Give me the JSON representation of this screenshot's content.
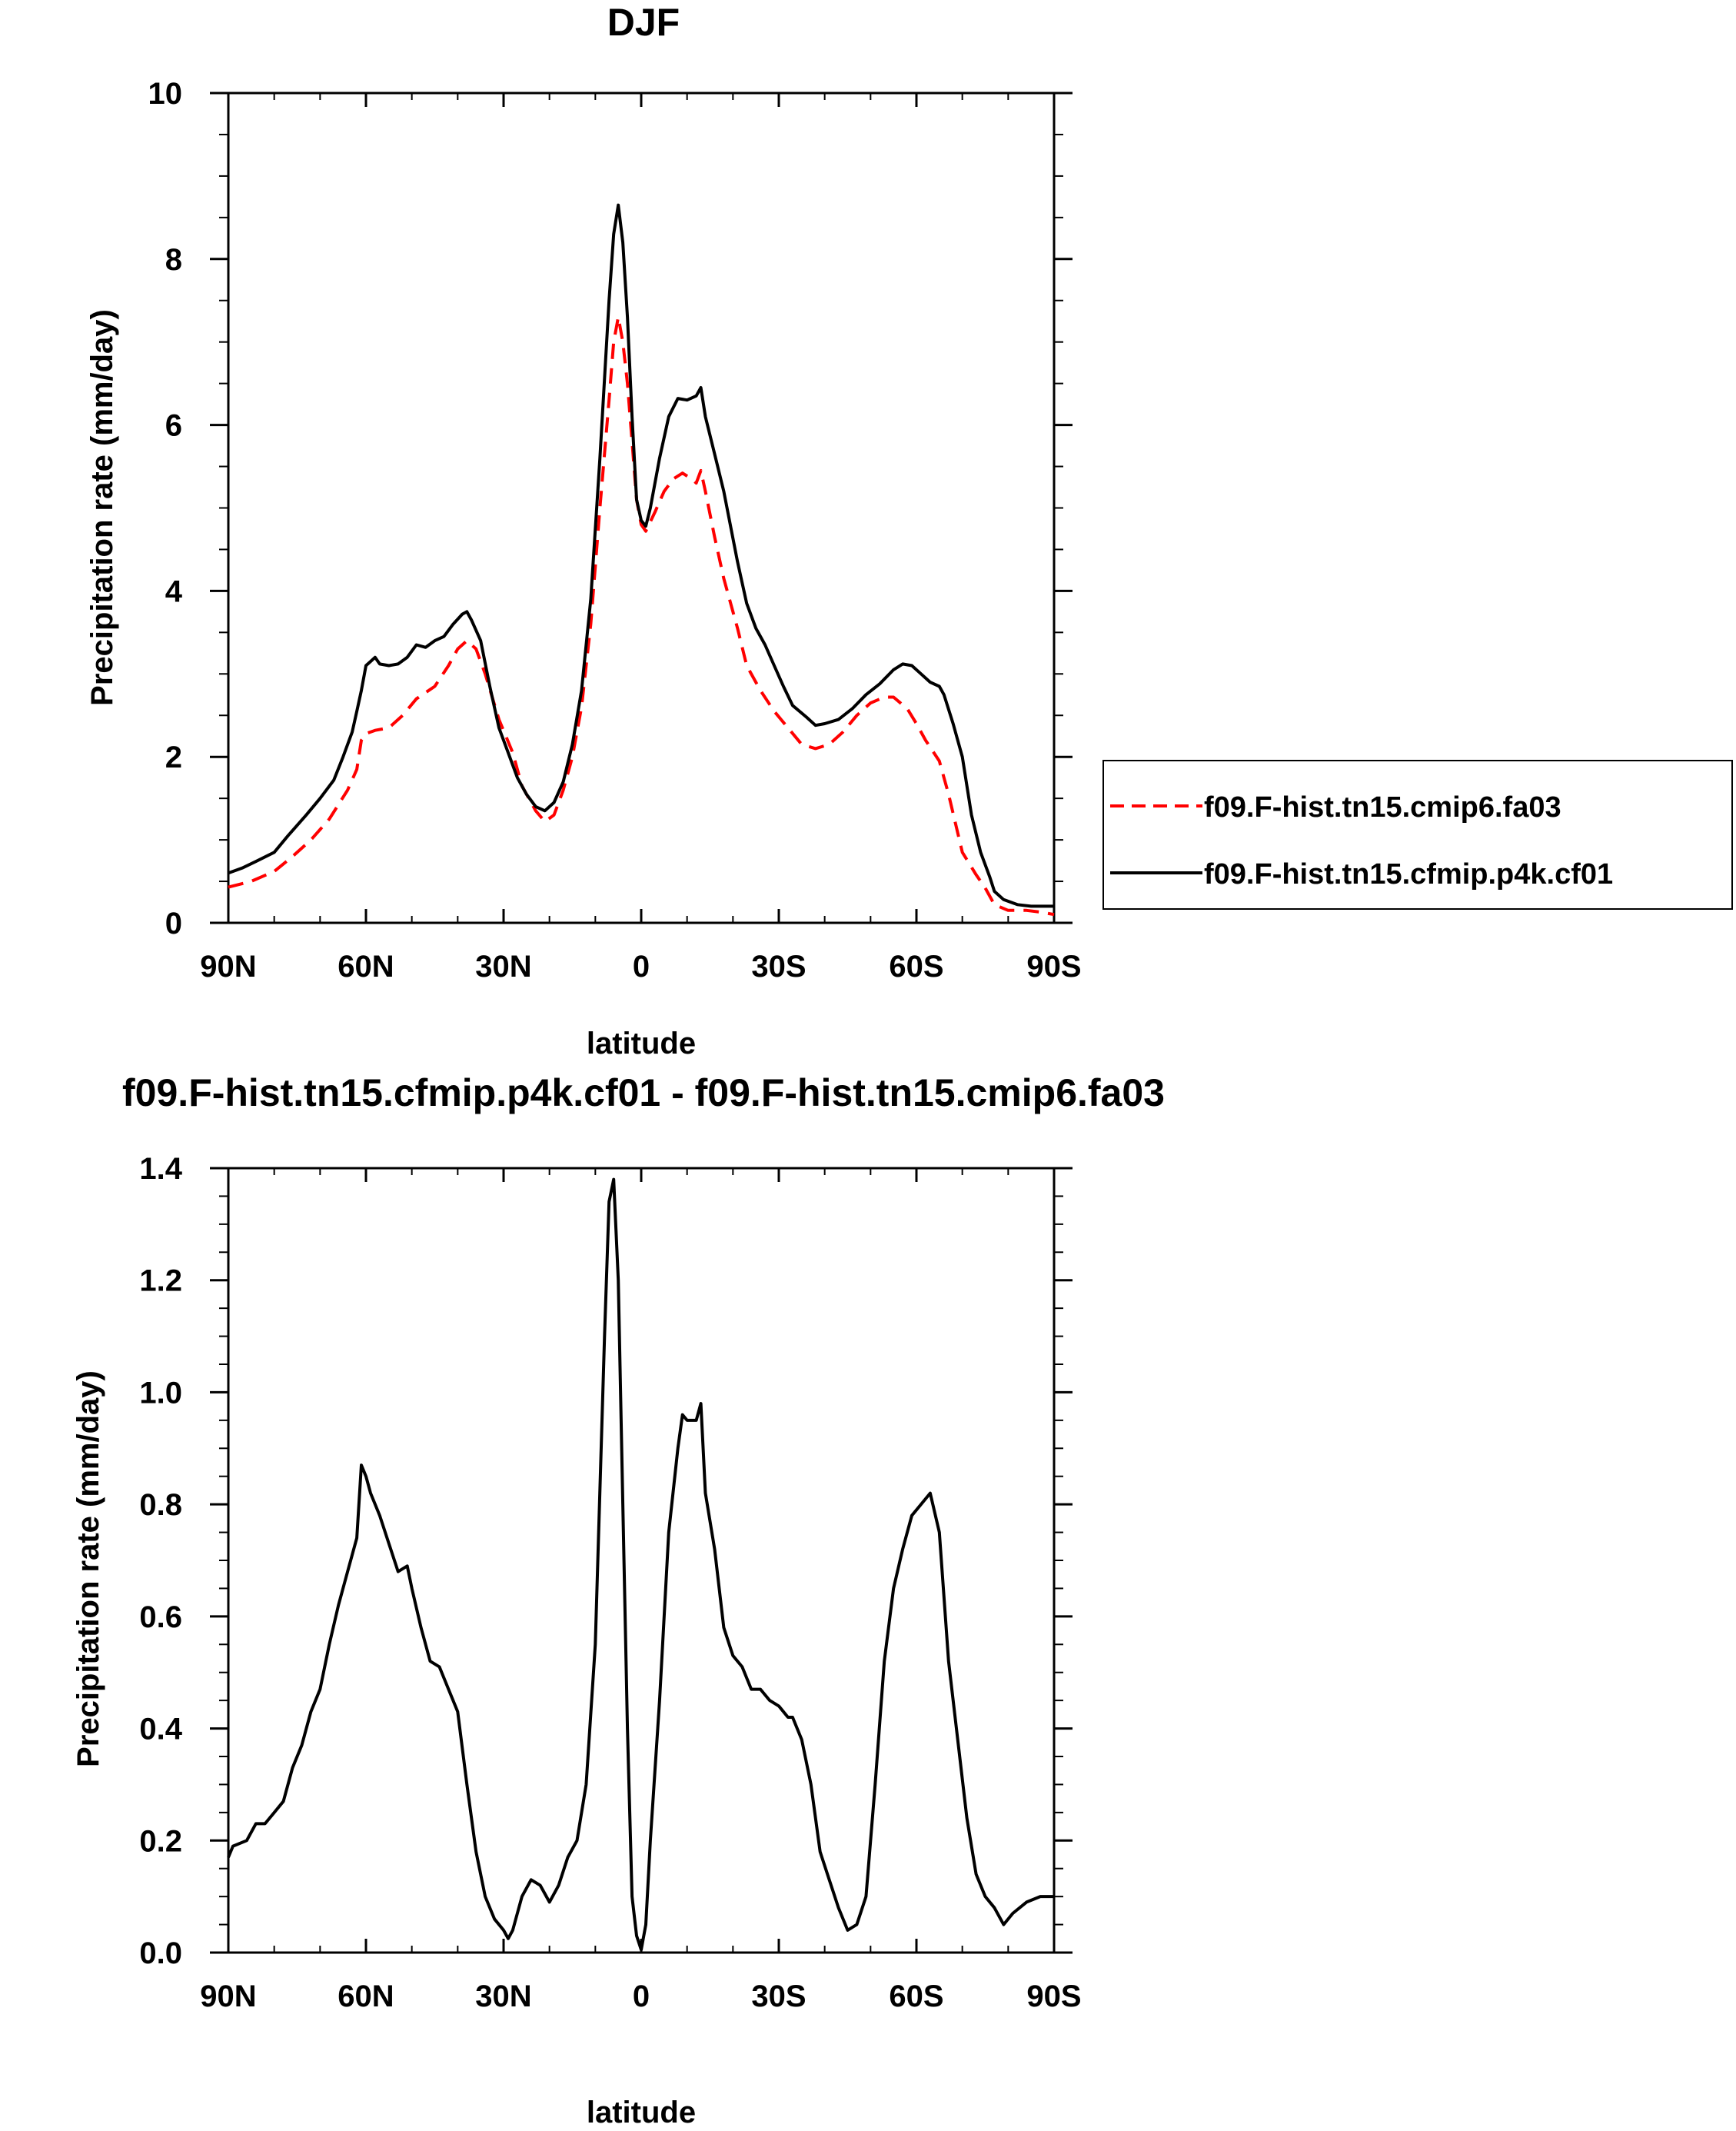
{
  "chart_data": [
    {
      "type": "line",
      "title": "DJF",
      "xlabel": "latitude",
      "ylabel": "Precipitation rate (mm/day)",
      "xlim": [
        90,
        -90
      ],
      "ylim": [
        0,
        10
      ],
      "xticks": [
        90,
        60,
        30,
        0,
        -30,
        -60,
        -90
      ],
      "xtick_labels": [
        "90N",
        "60N",
        "30N",
        "0",
        "30S",
        "60S",
        "90S"
      ],
      "yticks": [
        0,
        2,
        4,
        6,
        8,
        10
      ],
      "ytick_labels": [
        "0",
        "2",
        "4",
        "6",
        "8",
        "10"
      ],
      "legend_position": "right",
      "series": [
        {
          "name": "f09.F-hist.tn15.cmip6.fa03",
          "color": "#ff0000",
          "dash": "dashed",
          "points": [
            [
              90,
              0.43
            ],
            [
              85,
              0.5
            ],
            [
              80,
              0.62
            ],
            [
              76,
              0.8
            ],
            [
              72,
              1.0
            ],
            [
              68,
              1.25
            ],
            [
              64,
              1.6
            ],
            [
              62,
              1.85
            ],
            [
              61,
              2.2
            ],
            [
              60,
              2.28
            ],
            [
              58,
              2.32
            ],
            [
              55,
              2.35
            ],
            [
              52,
              2.5
            ],
            [
              49,
              2.7
            ],
            [
              45,
              2.85
            ],
            [
              42,
              3.1
            ],
            [
              40,
              3.3
            ],
            [
              38,
              3.4
            ],
            [
              36,
              3.3
            ],
            [
              34,
              3.0
            ],
            [
              31,
              2.45
            ],
            [
              28,
              2.05
            ],
            [
              26,
              1.65
            ],
            [
              23,
              1.35
            ],
            [
              21,
              1.22
            ],
            [
              19,
              1.3
            ],
            [
              17,
              1.6
            ],
            [
              15,
              2.0
            ],
            [
              13,
              2.6
            ],
            [
              11,
              3.6
            ],
            [
              9,
              5.0
            ],
            [
              7,
              6.3
            ],
            [
              6,
              7.0
            ],
            [
              5,
              7.3
            ],
            [
              4,
              7.0
            ],
            [
              3,
              6.5
            ],
            [
              2,
              5.8
            ],
            [
              1,
              5.1
            ],
            [
              0,
              4.8
            ],
            [
              -1,
              4.72
            ],
            [
              -3,
              4.95
            ],
            [
              -5,
              5.2
            ],
            [
              -7,
              5.35
            ],
            [
              -9,
              5.42
            ],
            [
              -11,
              5.35
            ],
            [
              -12,
              5.3
            ],
            [
              -13,
              5.45
            ],
            [
              -14,
              5.2
            ],
            [
              -16,
              4.65
            ],
            [
              -18,
              4.15
            ],
            [
              -21,
              3.55
            ],
            [
              -23,
              3.1
            ],
            [
              -26,
              2.8
            ],
            [
              -29,
              2.55
            ],
            [
              -32,
              2.35
            ],
            [
              -35,
              2.15
            ],
            [
              -38,
              2.1
            ],
            [
              -41,
              2.15
            ],
            [
              -44,
              2.3
            ],
            [
              -47,
              2.5
            ],
            [
              -50,
              2.65
            ],
            [
              -53,
              2.72
            ],
            [
              -55,
              2.72
            ],
            [
              -58,
              2.58
            ],
            [
              -60,
              2.4
            ],
            [
              -62,
              2.2
            ],
            [
              -65,
              1.95
            ],
            [
              -67,
              1.55
            ],
            [
              -70,
              0.85
            ],
            [
              -73,
              0.58
            ],
            [
              -75,
              0.42
            ],
            [
              -77,
              0.22
            ],
            [
              -80,
              0.15
            ],
            [
              -84,
              0.15
            ],
            [
              -87,
              0.13
            ],
            [
              -90,
              0.1
            ]
          ]
        },
        {
          "name": "f09.F-hist.tn15.cfmip.p4k.cf01",
          "color": "#000000",
          "dash": "solid",
          "points": [
            [
              90,
              0.6
            ],
            [
              87,
              0.66
            ],
            [
              84,
              0.74
            ],
            [
              80,
              0.85
            ],
            [
              77,
              1.05
            ],
            [
              73,
              1.3
            ],
            [
              70,
              1.5
            ],
            [
              67,
              1.72
            ],
            [
              65,
              2.0
            ],
            [
              63,
              2.3
            ],
            [
              62,
              2.55
            ],
            [
              61,
              2.8
            ],
            [
              60,
              3.1
            ],
            [
              59,
              3.15
            ],
            [
              58,
              3.2
            ],
            [
              57,
              3.12
            ],
            [
              55,
              3.1
            ],
            [
              53,
              3.12
            ],
            [
              51,
              3.2
            ],
            [
              49,
              3.35
            ],
            [
              47,
              3.32
            ],
            [
              45,
              3.4
            ],
            [
              43,
              3.45
            ],
            [
              41,
              3.6
            ],
            [
              39,
              3.72
            ],
            [
              38,
              3.75
            ],
            [
              37,
              3.65
            ],
            [
              35,
              3.4
            ],
            [
              33,
              2.85
            ],
            [
              31,
              2.35
            ],
            [
              29,
              2.05
            ],
            [
              27,
              1.75
            ],
            [
              25,
              1.55
            ],
            [
              23,
              1.4
            ],
            [
              21,
              1.35
            ],
            [
              19,
              1.45
            ],
            [
              17,
              1.7
            ],
            [
              15,
              2.15
            ],
            [
              13,
              2.8
            ],
            [
              11,
              3.9
            ],
            [
              9,
              5.6
            ],
            [
              7,
              7.5
            ],
            [
              6,
              8.3
            ],
            [
              5,
              8.65
            ],
            [
              4,
              8.2
            ],
            [
              3,
              7.3
            ],
            [
              2,
              6.1
            ],
            [
              1,
              5.1
            ],
            [
              0,
              4.85
            ],
            [
              -1,
              4.78
            ],
            [
              -2,
              5.0
            ],
            [
              -4,
              5.6
            ],
            [
              -6,
              6.1
            ],
            [
              -8,
              6.32
            ],
            [
              -10,
              6.3
            ],
            [
              -12,
              6.35
            ],
            [
              -13,
              6.45
            ],
            [
              -14,
              6.1
            ],
            [
              -16,
              5.65
            ],
            [
              -18,
              5.2
            ],
            [
              -21,
              4.35
            ],
            [
              -23,
              3.85
            ],
            [
              -25,
              3.55
            ],
            [
              -27,
              3.35
            ],
            [
              -29,
              3.1
            ],
            [
              -31,
              2.85
            ],
            [
              -33,
              2.62
            ],
            [
              -36,
              2.48
            ],
            [
              -38,
              2.38
            ],
            [
              -40,
              2.4
            ],
            [
              -43,
              2.45
            ],
            [
              -46,
              2.58
            ],
            [
              -49,
              2.75
            ],
            [
              -52,
              2.88
            ],
            [
              -55,
              3.05
            ],
            [
              -57,
              3.12
            ],
            [
              -59,
              3.1
            ],
            [
              -61,
              3.0
            ],
            [
              -63,
              2.9
            ],
            [
              -65,
              2.85
            ],
            [
              -66,
              2.75
            ],
            [
              -68,
              2.4
            ],
            [
              -70,
              2.0
            ],
            [
              -72,
              1.3
            ],
            [
              -74,
              0.85
            ],
            [
              -76,
              0.55
            ],
            [
              -77,
              0.38
            ],
            [
              -79,
              0.28
            ],
            [
              -82,
              0.22
            ],
            [
              -85,
              0.2
            ],
            [
              -88,
              0.2
            ],
            [
              -90,
              0.2
            ]
          ]
        }
      ]
    },
    {
      "type": "line",
      "title": "f09.F-hist.tn15.cfmip.p4k.cf01 - f09.F-hist.tn15.cmip6.fa03",
      "xlabel": "latitude",
      "ylabel": "Precipitation rate (mm/day)",
      "xlim": [
        90,
        -90
      ],
      "ylim": [
        0,
        1.4
      ],
      "xticks": [
        90,
        60,
        30,
        0,
        -30,
        -60,
        -90
      ],
      "xtick_labels": [
        "90N",
        "60N",
        "30N",
        "0",
        "30S",
        "60S",
        "90S"
      ],
      "yticks": [
        0,
        0.2,
        0.4,
        0.6,
        0.8,
        1.0,
        1.2,
        1.4
      ],
      "ytick_labels": [
        "0.0",
        "0.2",
        "0.4",
        "0.6",
        "0.8",
        "1.0",
        "1.2",
        "1.4"
      ],
      "series": [
        {
          "color": "#000000",
          "dash": "solid",
          "points": [
            [
              90,
              0.17
            ],
            [
              89,
              0.19
            ],
            [
              86,
              0.2
            ],
            [
              84,
              0.23
            ],
            [
              82,
              0.23
            ],
            [
              80,
              0.25
            ],
            [
              78,
              0.27
            ],
            [
              76,
              0.33
            ],
            [
              74,
              0.37
            ],
            [
              72,
              0.43
            ],
            [
              70,
              0.47
            ],
            [
              68,
              0.55
            ],
            [
              66,
              0.62
            ],
            [
              64,
              0.68
            ],
            [
              62,
              0.74
            ],
            [
              61,
              0.87
            ],
            [
              60,
              0.85
            ],
            [
              59,
              0.82
            ],
            [
              57,
              0.78
            ],
            [
              55,
              0.73
            ],
            [
              53,
              0.68
            ],
            [
              51,
              0.69
            ],
            [
              50,
              0.65
            ],
            [
              48,
              0.58
            ],
            [
              46,
              0.52
            ],
            [
              44,
              0.51
            ],
            [
              42,
              0.47
            ],
            [
              40,
              0.43
            ],
            [
              38,
              0.3
            ],
            [
              36,
              0.18
            ],
            [
              34,
              0.1
            ],
            [
              32,
              0.06
            ],
            [
              30,
              0.04
            ],
            [
              29,
              0.025
            ],
            [
              28,
              0.04
            ],
            [
              26,
              0.1
            ],
            [
              24,
              0.13
            ],
            [
              22,
              0.12
            ],
            [
              20,
              0.09
            ],
            [
              18,
              0.12
            ],
            [
              16,
              0.17
            ],
            [
              14,
              0.2
            ],
            [
              12,
              0.3
            ],
            [
              10,
              0.55
            ],
            [
              8,
              1.1
            ],
            [
              7,
              1.34
            ],
            [
              6,
              1.38
            ],
            [
              5,
              1.2
            ],
            [
              4,
              0.8
            ],
            [
              3,
              0.4
            ],
            [
              2,
              0.1
            ],
            [
              1,
              0.03
            ],
            [
              0,
              0.005
            ],
            [
              -1,
              0.05
            ],
            [
              -2,
              0.2
            ],
            [
              -4,
              0.45
            ],
            [
              -6,
              0.75
            ],
            [
              -8,
              0.9
            ],
            [
              -9,
              0.96
            ],
            [
              -10,
              0.95
            ],
            [
              -12,
              0.95
            ],
            [
              -13,
              0.98
            ],
            [
              -14,
              0.82
            ],
            [
              -16,
              0.72
            ],
            [
              -18,
              0.58
            ],
            [
              -20,
              0.53
            ],
            [
              -22,
              0.51
            ],
            [
              -24,
              0.47
            ],
            [
              -26,
              0.47
            ],
            [
              -28,
              0.45
            ],
            [
              -30,
              0.44
            ],
            [
              -32,
              0.42
            ],
            [
              -33,
              0.42
            ],
            [
              -35,
              0.38
            ],
            [
              -37,
              0.3
            ],
            [
              -39,
              0.18
            ],
            [
              -41,
              0.13
            ],
            [
              -43,
              0.08
            ],
            [
              -45,
              0.04
            ],
            [
              -47,
              0.05
            ],
            [
              -49,
              0.1
            ],
            [
              -51,
              0.3
            ],
            [
              -53,
              0.52
            ],
            [
              -55,
              0.65
            ],
            [
              -57,
              0.72
            ],
            [
              -59,
              0.78
            ],
            [
              -61,
              0.8
            ],
            [
              -63,
              0.82
            ],
            [
              -65,
              0.75
            ],
            [
              -67,
              0.52
            ],
            [
              -69,
              0.38
            ],
            [
              -71,
              0.24
            ],
            [
              -73,
              0.14
            ],
            [
              -75,
              0.1
            ],
            [
              -77,
              0.08
            ],
            [
              -79,
              0.05
            ],
            [
              -81,
              0.07
            ],
            [
              -84,
              0.09
            ],
            [
              -87,
              0.1
            ],
            [
              -90,
              0.1
            ]
          ]
        }
      ]
    }
  ]
}
